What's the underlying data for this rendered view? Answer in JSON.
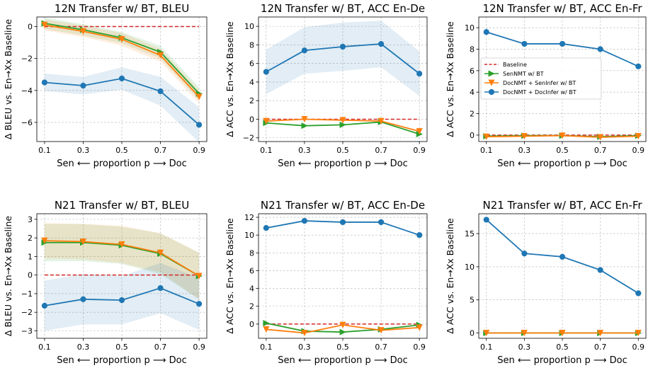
{
  "chart_data": [
    {
      "type": "line",
      "title": "12N Transfer w/ BT, BLEU",
      "xlabel": "Sen ⟵     proportion p     ⟶ Doc",
      "ylabel": "Δ BLEU vs. En→Xx Baseline",
      "x": [
        0.1,
        0.3,
        0.5,
        0.7,
        0.9
      ],
      "xticks": [
        "0.1",
        "0.3",
        "0.5",
        "0.7",
        "0.9"
      ],
      "ylim": [
        -7.2,
        0.6
      ],
      "yticks": [
        -6,
        -4,
        -2,
        0
      ],
      "grid": true,
      "series": [
        {
          "name": "Baseline",
          "values": [
            0,
            0,
            0,
            0,
            0
          ],
          "color": "#d62728",
          "style": "dashed"
        },
        {
          "name": "SenNMT w/ BT",
          "values": [
            0.2,
            -0.2,
            -0.7,
            -1.6,
            -4.2
          ],
          "color": "#2ca02c",
          "marker": "triangle-right",
          "band": [
            0.35,
            0.35,
            0.35,
            0.4,
            0.4
          ]
        },
        {
          "name": "DocNMT + SenInfer w/ BT",
          "values": [
            0.1,
            -0.3,
            -0.8,
            -1.8,
            -4.4
          ],
          "color": "#ff7f0e",
          "marker": "triangle-down",
          "band": [
            0.35,
            0.35,
            0.4,
            0.4,
            0.4
          ]
        },
        {
          "name": "DocNMT + DocInfer w/ BT",
          "values": [
            -3.5,
            -3.7,
            -3.25,
            -4.05,
            -6.15
          ],
          "color": "#1f77b4",
          "marker": "circle",
          "band": [
            0.55,
            0.55,
            0.7,
            0.9,
            1.1
          ]
        }
      ]
    },
    {
      "type": "line",
      "title": "12N Transfer w/ BT, ACC En-De",
      "xlabel": "Sen ⟵     proportion p     ⟶ Doc",
      "ylabel": "Δ ACC vs. En→Xx Baseline",
      "x": [
        0.1,
        0.3,
        0.5,
        0.7,
        0.9
      ],
      "xticks": [
        "0.1",
        "0.3",
        "0.5",
        "0.7",
        "0.9"
      ],
      "ylim": [
        -2.4,
        11
      ],
      "yticks": [
        -2,
        0,
        2,
        4,
        6,
        8,
        10
      ],
      "grid": true,
      "series": [
        {
          "name": "Baseline",
          "values": [
            0,
            0,
            0,
            0,
            0
          ],
          "color": "#d62728",
          "style": "dashed"
        },
        {
          "name": "SenNMT w/ BT",
          "values": [
            -0.4,
            -0.7,
            -0.6,
            -0.3,
            -1.6
          ],
          "color": "#2ca02c",
          "marker": "triangle-right"
        },
        {
          "name": "DocNMT + SenInfer w/ BT",
          "values": [
            -0.2,
            0.0,
            -0.1,
            -0.2,
            -1.3
          ],
          "color": "#ff7f0e",
          "marker": "triangle-down"
        },
        {
          "name": "DocNMT + DocInfer w/ BT",
          "values": [
            5.1,
            7.4,
            7.8,
            8.1,
            4.9
          ],
          "color": "#1f77b4",
          "marker": "circle",
          "band": [
            2.4,
            2.5,
            2.6,
            2.5,
            2.4
          ]
        }
      ]
    },
    {
      "type": "line",
      "title": "12N Transfer w/ BT, ACC En-Fr",
      "xlabel": "Sen ⟵     proportion p     ⟶ Doc",
      "ylabel": "Δ ACC vs. En→Xx Baseline",
      "x": [
        0.1,
        0.3,
        0.5,
        0.7,
        0.9
      ],
      "xticks": [
        "0.1",
        "0.3",
        "0.5",
        "0.7",
        "0.9"
      ],
      "ylim": [
        -0.6,
        11
      ],
      "yticks": [
        0,
        2,
        4,
        6,
        8,
        10
      ],
      "grid": true,
      "legend": "center-left",
      "series": [
        {
          "name": "Baseline",
          "values": [
            0,
            0,
            0,
            0,
            0
          ],
          "color": "#d62728",
          "style": "dashed"
        },
        {
          "name": "SenNMT w/ BT",
          "values": [
            -0.1,
            -0.05,
            -0.05,
            -0.15,
            -0.05
          ],
          "color": "#2ca02c",
          "marker": "triangle-right"
        },
        {
          "name": "DocNMT + SenInfer w/ BT",
          "values": [
            -0.15,
            -0.1,
            -0.05,
            -0.2,
            -0.1
          ],
          "color": "#ff7f0e",
          "marker": "triangle-down"
        },
        {
          "name": "DocNMT + DocInfer w/ BT",
          "values": [
            9.6,
            8.5,
            8.5,
            8.0,
            6.4
          ],
          "color": "#1f77b4",
          "marker": "circle"
        }
      ]
    },
    {
      "type": "line",
      "title": "N21 Transfer w/ BT, BLEU",
      "xlabel": "Sen ⟵     proportion p     ⟶ Doc",
      "ylabel": "Δ BLEU vs. En→Xx Baseline",
      "x": [
        0.1,
        0.3,
        0.5,
        0.7,
        0.9
      ],
      "xticks": [
        "0.1",
        "0.3",
        "0.5",
        "0.7",
        "0.9"
      ],
      "ylim": [
        -3.4,
        3.3
      ],
      "yticks": [
        -3,
        -2,
        -1,
        0,
        1,
        2,
        3
      ],
      "grid": true,
      "series": [
        {
          "name": "Baseline",
          "values": [
            0,
            0,
            0,
            0,
            0
          ],
          "color": "#d62728",
          "style": "dashed"
        },
        {
          "name": "SenNMT w/ BT",
          "values": [
            1.75,
            1.75,
            1.6,
            1.15,
            -0.05
          ],
          "color": "#2ca02c",
          "marker": "triangle-right",
          "band": [
            1.0,
            1.0,
            1.0,
            1.1,
            1.25
          ]
        },
        {
          "name": "DocNMT + SenInfer w/ BT",
          "values": [
            1.85,
            1.8,
            1.65,
            1.2,
            -0.05
          ],
          "color": "#ff7f0e",
          "marker": "triangle-down",
          "band": [
            0.95,
            0.95,
            1.0,
            1.05,
            1.25
          ]
        },
        {
          "name": "DocNMT + DocInfer w/ BT",
          "values": [
            -1.65,
            -1.3,
            -1.35,
            -0.7,
            -1.55
          ],
          "color": "#1f77b4",
          "marker": "circle",
          "band": [
            1.35,
            1.35,
            1.3,
            1.35,
            1.4
          ]
        }
      ]
    },
    {
      "type": "line",
      "title": "N21 Transfer w/ BT, ACC En-De",
      "xlabel": "Sen ⟵     proportion p     ⟶ Doc",
      "ylabel": "Δ ACC vs. En→Xx Baseline",
      "x": [
        0.1,
        0.3,
        0.5,
        0.7,
        0.9
      ],
      "xticks": [
        "0.1",
        "0.3",
        "0.5",
        "0.7",
        "0.9"
      ],
      "ylim": [
        -1.6,
        12.4
      ],
      "yticks": [
        0,
        2,
        4,
        6,
        8,
        10,
        12
      ],
      "grid": true,
      "series": [
        {
          "name": "Baseline",
          "values": [
            0,
            0,
            0,
            0,
            0
          ],
          "color": "#d62728",
          "style": "dashed"
        },
        {
          "name": "SenNMT w/ BT",
          "values": [
            0.1,
            -0.8,
            -0.9,
            -0.6,
            -0.1
          ],
          "color": "#2ca02c",
          "marker": "triangle-right"
        },
        {
          "name": "DocNMT + SenInfer w/ BT",
          "values": [
            -0.6,
            -1.0,
            -0.1,
            -0.7,
            -0.4
          ],
          "color": "#ff7f0e",
          "marker": "triangle-down"
        },
        {
          "name": "DocNMT + DocInfer w/ BT",
          "values": [
            10.8,
            11.6,
            11.45,
            11.45,
            10.0
          ],
          "color": "#1f77b4",
          "marker": "circle"
        }
      ]
    },
    {
      "type": "line",
      "title": "N21 Transfer w/ BT, ACC En-Fr",
      "xlabel": "Sen ⟵     proportion p     ⟶ Doc",
      "ylabel": "Δ ACC vs. En→Xx Baseline",
      "x": [
        0.1,
        0.3,
        0.5,
        0.7,
        0.9
      ],
      "xticks": [
        "0.1",
        "0.3",
        "0.5",
        "0.7",
        "0.9"
      ],
      "ylim": [
        -0.8,
        18
      ],
      "yticks": [
        0,
        5,
        10,
        15
      ],
      "grid": true,
      "series": [
        {
          "name": "Baseline",
          "values": [
            0,
            0,
            0,
            0,
            0
          ],
          "color": "#d62728",
          "style": "dashed"
        },
        {
          "name": "SenNMT w/ BT",
          "values": [
            0,
            0,
            0,
            0,
            0
          ],
          "color": "#2ca02c",
          "marker": "triangle-right"
        },
        {
          "name": "DocNMT + SenInfer w/ BT",
          "values": [
            0,
            0,
            0,
            0,
            0
          ],
          "color": "#ff7f0e",
          "marker": "triangle-down"
        },
        {
          "name": "DocNMT + DocInfer w/ BT",
          "values": [
            17.1,
            12.0,
            11.5,
            9.5,
            6.0
          ],
          "color": "#1f77b4",
          "marker": "circle"
        }
      ]
    }
  ]
}
